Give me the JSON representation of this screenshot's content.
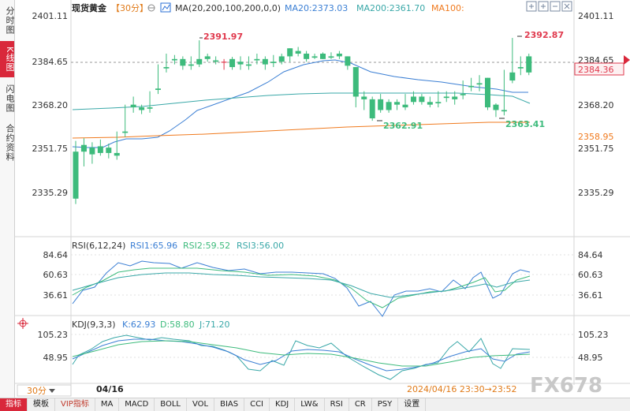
{
  "sidebar": {
    "items": [
      {
        "label": "分时图",
        "active": false
      },
      {
        "label": "K线图",
        "active": true
      },
      {
        "label": "闪电图",
        "active": false
      },
      {
        "label": "合约资料",
        "active": false
      }
    ]
  },
  "header": {
    "symbol": "现货黄金",
    "period": "【30分】",
    "ma_label": "MA(20,200,100,200,0,0)",
    "ma20": "MA20:2373.03",
    "ma200": "MA200:2361.70",
    "ma100": "MA100:"
  },
  "rsi": {
    "title": "RSI(6,12,24)",
    "rsi1": "RSI1:65.96",
    "rsi2": "RSI2:59.52",
    "rsi3": "RSI3:56.00"
  },
  "kdj": {
    "title": "KDJ(9,3,3)",
    "k": "K:62.93",
    "d": "D:58.80",
    "j": "J:71.20"
  },
  "footer": {
    "period_button": "30分",
    "date": "04/16",
    "range": "2024/04/16 23:30→23:52",
    "watermark": "FX678"
  },
  "bottom_tabs": [
    "指标",
    "模板",
    "VIP指标",
    "MA",
    "MACD",
    "BOLL",
    "VOL",
    "BIAS",
    "CCI",
    "KDJ",
    "LW&",
    "RSI",
    "CR",
    "PSY",
    "设置"
  ],
  "colors": {
    "up": "#e03a4e",
    "down": "#3dbb7c",
    "ma20": "#3b7fd4",
    "ma200": "#3aa8a8",
    "ma100": "#f07a1e",
    "accent": "#d9283b"
  },
  "chart_data": {
    "type": "candlestick",
    "price_ticks": [
      "2401.11",
      "2384.65",
      "2368.20",
      "2351.75",
      "2335.29"
    ],
    "current_price": "2384.36",
    "ma100_marker": "2358.95",
    "annotations": {
      "high1": "2391.97",
      "high2": "2392.87",
      "low1": "2362.91",
      "low2": "2363.41"
    },
    "ylim": [
      2330,
      2404
    ],
    "candles": [
      [
        2350.5,
        2354.5,
        2333,
        2331
      ],
      [
        2353,
        2355.5,
        2350.5,
        2345
      ],
      [
        2352,
        2354,
        2349.5,
        2346
      ],
      [
        2352.5,
        2355,
        2350,
        2349
      ],
      [
        2352,
        2353.5,
        2350,
        2348
      ],
      [
        2350,
        2358,
        2349,
        2347.5
      ],
      [
        2358,
        2368,
        2357.5,
        2356
      ],
      [
        2368,
        2371,
        2367,
        2365
      ],
      [
        2367,
        2368,
        2366,
        2364.5
      ],
      [
        2367,
        2373,
        2366.5,
        2365
      ],
      [
        2374,
        2383,
        2373.5,
        2372
      ],
      [
        2382,
        2387,
        2381.5,
        2380
      ],
      [
        2385,
        2386.5,
        2384.5,
        2383
      ],
      [
        2385,
        2386,
        2382.5,
        2381
      ],
      [
        2383,
        2386,
        2382.5,
        2381
      ],
      [
        2385,
        2391.97,
        2383,
        2382
      ],
      [
        2386,
        2387,
        2385,
        2384
      ],
      [
        2384.5,
        2386,
        2384,
        2383
      ],
      [
        2384,
        2385,
        2384,
        2381
      ],
      [
        2385,
        2385.8,
        2382,
        2381
      ],
      [
        2384,
        2386,
        2383,
        2381
      ],
      [
        2383,
        2386,
        2382.5,
        2381
      ],
      [
        2385,
        2387,
        2384.5,
        2383
      ],
      [
        2385,
        2386,
        2383,
        2381
      ],
      [
        2384,
        2386.5,
        2383.5,
        2382
      ],
      [
        2386,
        2387,
        2384,
        2383
      ],
      [
        2389,
        2388,
        2386,
        2384
      ],
      [
        2388,
        2389.5,
        2387,
        2386
      ],
      [
        2387,
        2388,
        2385,
        2384
      ],
      [
        2386,
        2387,
        2385.5,
        2385
      ],
      [
        2387,
        2387.5,
        2385,
        2385
      ],
      [
        2386,
        2387.5,
        2385.5,
        2385
      ],
      [
        2387,
        2388,
        2386,
        2385
      ],
      [
        2386,
        2385.5,
        2382.5,
        2381
      ],
      [
        2382,
        2381.5,
        2371,
        2367
      ],
      [
        2371,
        2373,
        2370,
        2366
      ],
      [
        2370,
        2371,
        2362.91,
        2362
      ],
      [
        2370,
        2372,
        2366,
        2365
      ],
      [
        2369,
        2370,
        2366,
        2365
      ],
      [
        2369,
        2370,
        2368,
        2366
      ],
      [
        2368,
        2372,
        2367,
        2366
      ],
      [
        2371,
        2373,
        2369,
        2368
      ],
      [
        2371,
        2372,
        2369,
        2368
      ],
      [
        2369,
        2371,
        2368,
        2367
      ],
      [
        2369,
        2373,
        2368.5,
        2367
      ],
      [
        2371,
        2373,
        2370.5,
        2369
      ],
      [
        2371,
        2373,
        2370,
        2368
      ],
      [
        2372,
        2377,
        2371.5,
        2370
      ],
      [
        2375,
        2378,
        2374.5,
        2373
      ],
      [
        2376,
        2379,
        2375.5,
        2373
      ],
      [
        2378,
        2374,
        2367,
        2366
      ],
      [
        2368,
        2368.5,
        2366,
        2363.41
      ],
      [
        2366,
        2381,
        2365.5,
        2364
      ],
      [
        2380,
        2392.87,
        2377,
        2376
      ],
      [
        2382,
        2386,
        2381.5,
        2379
      ],
      [
        2386,
        2387,
        2380,
        2379
      ]
    ]
  }
}
